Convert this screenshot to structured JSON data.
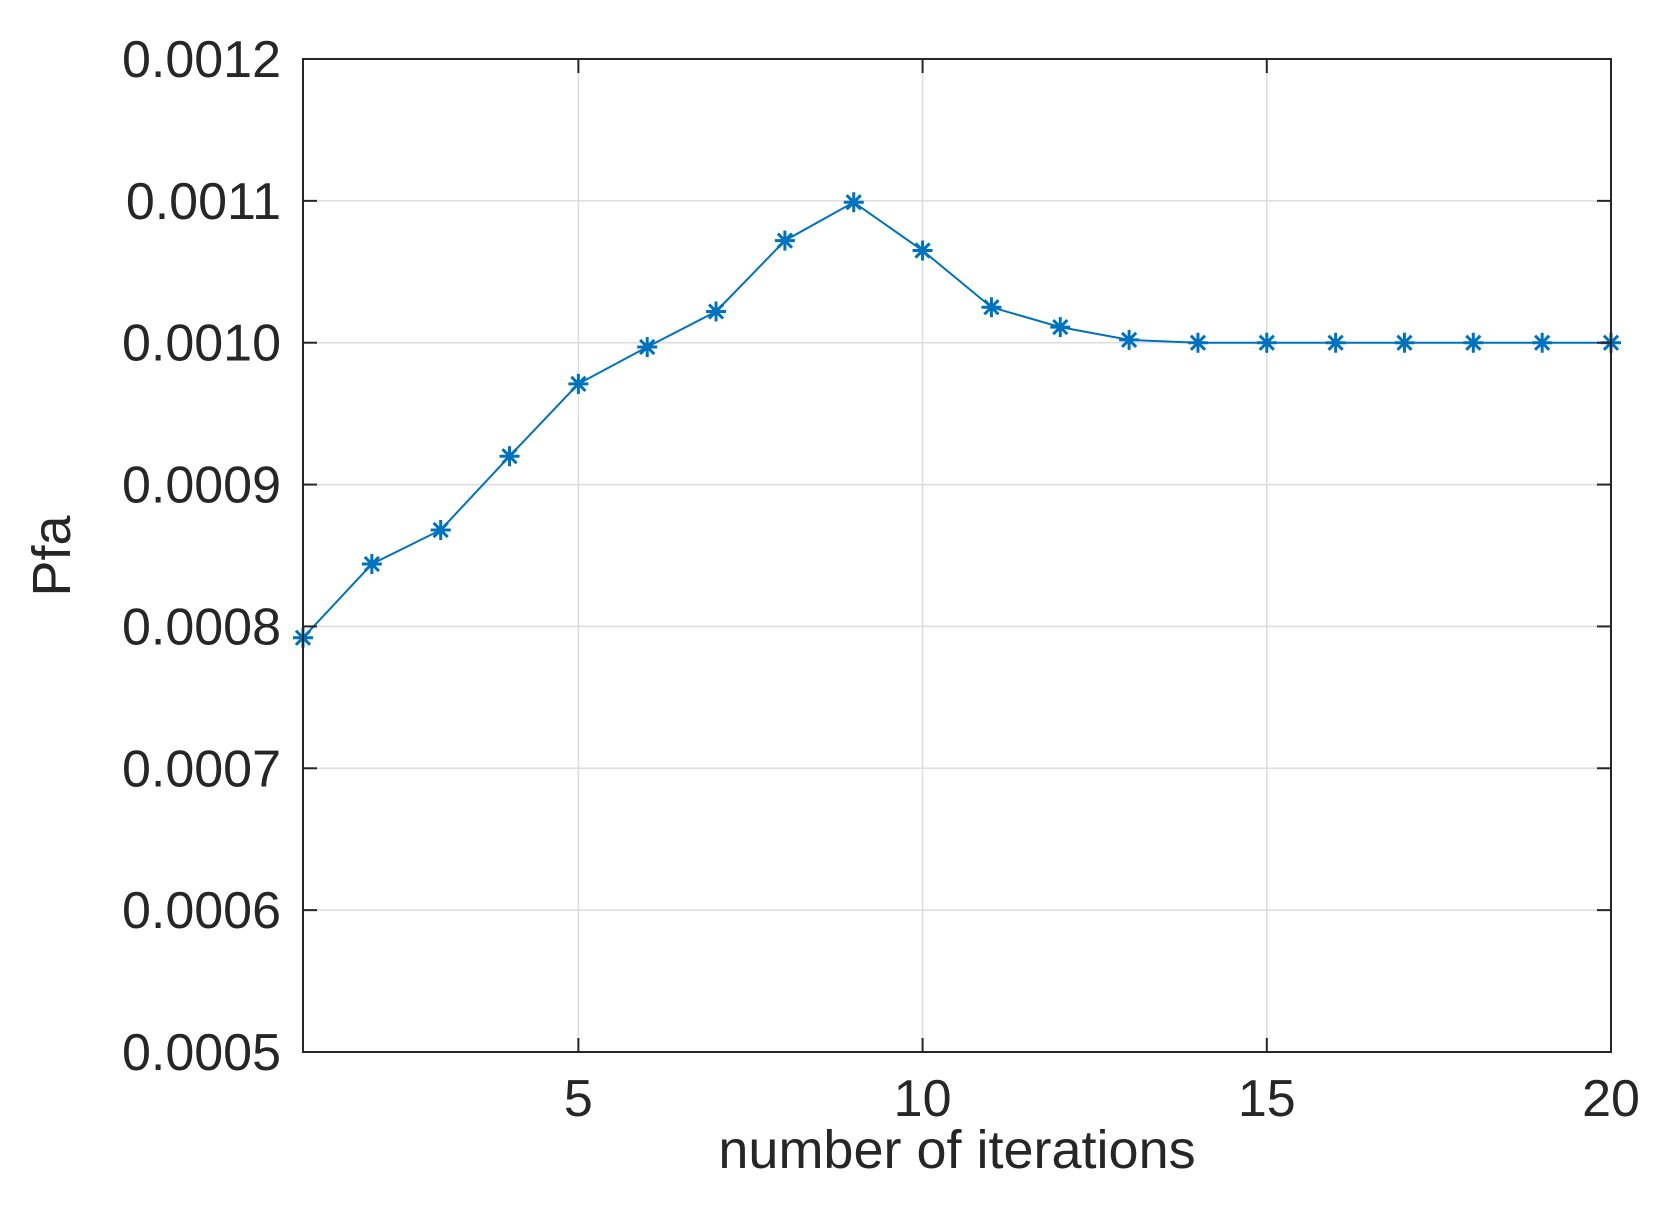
{
  "chart_data": {
    "type": "line",
    "xlabel": "number of iterations",
    "ylabel": "Pfa",
    "x": [
      1,
      2,
      3,
      4,
      5,
      6,
      7,
      8,
      9,
      10,
      11,
      12,
      13,
      14,
      15,
      16,
      17,
      18,
      19,
      20
    ],
    "series": [
      {
        "name": "Pfa",
        "color": "#0072bd",
        "marker": "asterisk",
        "values": [
          0.000792,
          0.000844,
          0.000868,
          0.00092,
          0.000971,
          0.000997,
          0.001022,
          0.001072,
          0.001099,
          0.001065,
          0.001025,
          0.001011,
          0.001002,
          0.001,
          0.001,
          0.001,
          0.001,
          0.001,
          0.001,
          0.001
        ]
      }
    ],
    "xlim": [
      1,
      20
    ],
    "xticks": [
      5,
      10,
      15,
      20
    ],
    "ylim": [
      0.0005,
      0.0012
    ],
    "yticks": [
      0.0005,
      0.0006,
      0.0007,
      0.0008,
      0.0009,
      {
        "value": 0.001,
        "label": "0.0010"
      },
      0.0011,
      0.0012
    ],
    "grid": true
  }
}
